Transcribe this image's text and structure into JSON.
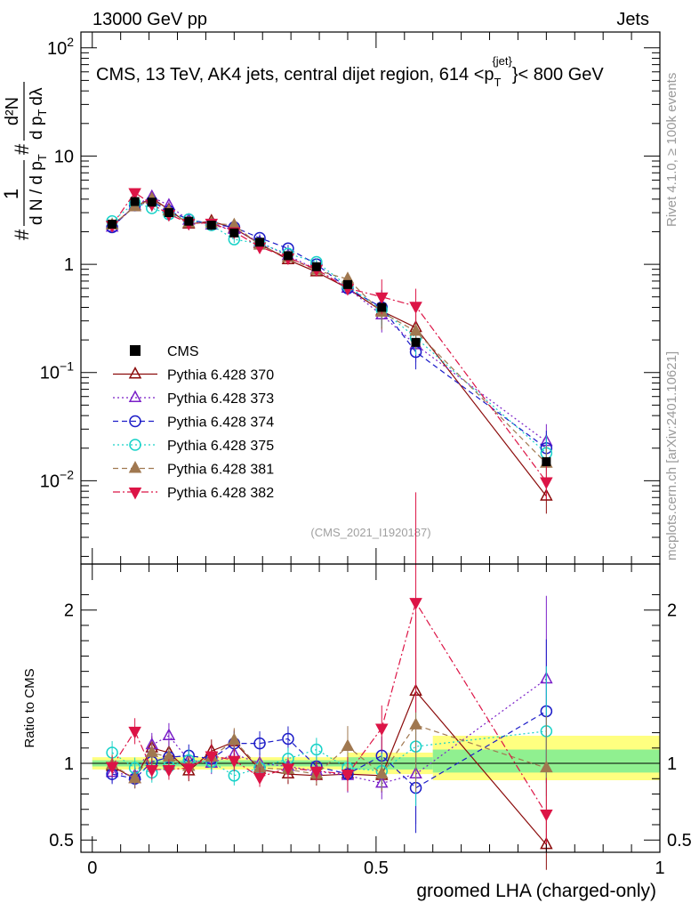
{
  "header": {
    "left": "13000 GeV pp",
    "right": "Jets",
    "title": "CMS, 13 TeV, AK4 jets, central dijet region, 614 <p",
    "title_sub": "T",
    "title_sup": "{jet}",
    "title_end": "}< 800 GeV",
    "side_top": "Rivet 4.1.0, ≥ 100k events",
    "side_bottom": "mcplots.cern.ch [arXiv:2401.10621]",
    "analysis_id": "(CMS_2021_I1920187)"
  },
  "ylabel_parts": {
    "hash1": "#",
    "num1": "1",
    "den1": "d N / d p",
    "den1_sub": "T",
    "hash2": "#",
    "num2": "d²N",
    "den2": "d p",
    "den2_sub": "T",
    "den2_end": "dλ"
  },
  "ratio_ylabel": "Ratio to CMS",
  "xlabel": "groomed LHA (charged-only)",
  "chart_data": {
    "type": "scatter",
    "x": [
      0.035,
      0.075,
      0.105,
      0.135,
      0.17,
      0.21,
      0.25,
      0.295,
      0.345,
      0.395,
      0.45,
      0.51,
      0.57,
      0.8
    ],
    "xlim": [
      -0.02,
      1.0
    ],
    "main_ylim": [
      0.0017,
      140
    ],
    "main_yscale": "log",
    "main_yticks": [
      {
        "v": 0.01,
        "label": "10",
        "exp": "−2"
      },
      {
        "v": 0.1,
        "label": "10",
        "exp": "−1"
      },
      {
        "v": 1,
        "label": "1",
        "exp": ""
      },
      {
        "v": 10,
        "label": "10",
        "exp": ""
      },
      {
        "v": 100,
        "label": "10",
        "exp": "2"
      }
    ],
    "ratio_ylim": [
      0.42,
      2.3
    ],
    "ratio_yticks": [
      {
        "v": 0.5,
        "label": "0.5"
      },
      {
        "v": 1,
        "label": "1"
      },
      {
        "v": 2,
        "label": "2"
      }
    ],
    "xticks": [
      {
        "v": 0,
        "label": "0"
      },
      {
        "v": 0.5,
        "label": "0.5"
      },
      {
        "v": 1,
        "label": "1"
      }
    ],
    "band_yellow": [
      [
        0.0,
        0.45,
        0.96,
        1.04
      ],
      [
        0.45,
        0.6,
        0.93,
        1.07
      ],
      [
        0.6,
        1.0,
        0.89,
        1.18
      ]
    ],
    "band_green": [
      [
        0.0,
        0.45,
        0.98,
        1.02
      ],
      [
        0.45,
        0.6,
        0.96,
        1.04
      ],
      [
        0.6,
        1.0,
        0.94,
        1.09
      ]
    ],
    "cms": {
      "name": "CMS",
      "values": [
        2.35,
        3.8,
        3.75,
        3.0,
        2.5,
        2.3,
        1.95,
        1.6,
        1.2,
        0.95,
        0.65,
        0.4,
        0.19,
        0.015
      ]
    },
    "series": [
      {
        "name": "Pythia 6.428 370",
        "color": "#8b0b0b",
        "marker": "tri_up_open",
        "dash": "",
        "connect": true,
        "values": [
          2.3,
          3.4,
          4.1,
          3.2,
          2.35,
          2.5,
          2.15,
          1.55,
          1.1,
          0.85,
          0.6,
          0.37,
          0.26,
          0.0072
        ],
        "ratio": [
          0.98,
          0.9,
          1.1,
          1.07,
          0.95,
          1.08,
          1.14,
          0.96,
          0.93,
          0.92,
          0.93,
          0.92,
          1.47,
          0.47
        ]
      },
      {
        "name": "Pythia 6.428 373",
        "color": "#7a1fc8",
        "marker": "tri_up_open",
        "dash": "2,3",
        "connect": true,
        "values": [
          2.2,
          3.5,
          4.2,
          3.5,
          2.55,
          2.3,
          2.1,
          1.6,
          1.2,
          0.9,
          0.6,
          0.34,
          0.18,
          0.023
        ],
        "ratio": [
          0.94,
          0.92,
          1.12,
          1.18,
          1.02,
          1.0,
          1.06,
          1.0,
          0.98,
          0.95,
          0.92,
          0.87,
          0.93,
          1.55
        ]
      },
      {
        "name": "Pythia 6.428 374",
        "color": "#1c1cc8",
        "marker": "circle_open",
        "dash": "6,4",
        "connect": true,
        "values": [
          2.2,
          3.5,
          3.8,
          3.1,
          2.6,
          2.35,
          2.2,
          1.75,
          1.4,
          1.0,
          0.6,
          0.4,
          0.155,
          0.02
        ],
        "ratio": [
          0.93,
          0.9,
          1.01,
          1.04,
          1.05,
          1.03,
          1.13,
          1.13,
          1.16,
          0.98,
          0.93,
          1.05,
          0.84,
          1.34
        ]
      },
      {
        "name": "Pythia 6.428 375",
        "color": "#18d2c8",
        "marker": "circle_open",
        "dash": "2,3",
        "connect": true,
        "values": [
          2.5,
          3.7,
          3.3,
          2.9,
          2.6,
          2.3,
          1.7,
          1.55,
          1.25,
          1.05,
          0.63,
          0.38,
          0.21,
          0.018
        ],
        "ratio": [
          1.07,
          0.97,
          0.94,
          0.98,
          1.02,
          1.01,
          0.92,
          0.97,
          1.03,
          1.09,
          0.97,
          0.95,
          1.11,
          1.21
        ]
      },
      {
        "name": "Pythia 6.428 381",
        "color": "#a07850",
        "marker": "tri_up_filled",
        "dash": "6,4",
        "connect": true,
        "values": [
          2.3,
          3.4,
          4.0,
          3.1,
          2.4,
          2.4,
          2.3,
          1.5,
          1.15,
          0.88,
          0.73,
          0.36,
          0.24,
          0.0145
        ],
        "ratio": [
          0.99,
          0.9,
          1.07,
          1.04,
          0.98,
          1.04,
          1.15,
          0.97,
          0.96,
          0.93,
          1.11,
          0.93,
          1.25,
          0.97
        ]
      },
      {
        "name": "Pythia 6.428 382",
        "color": "#dc1446",
        "marker": "tri_down_filled",
        "dash": "8,3,2,3",
        "connect": true,
        "values": [
          2.3,
          4.6,
          3.6,
          2.9,
          2.4,
          2.4,
          2.0,
          1.45,
          1.15,
          0.9,
          0.6,
          0.5,
          0.41,
          0.0098
        ],
        "ratio": [
          0.98,
          1.21,
          0.96,
          0.96,
          0.97,
          1.05,
          1.02,
          0.91,
          0.97,
          0.95,
          0.93,
          1.23,
          2.05,
          0.67
        ]
      }
    ]
  }
}
